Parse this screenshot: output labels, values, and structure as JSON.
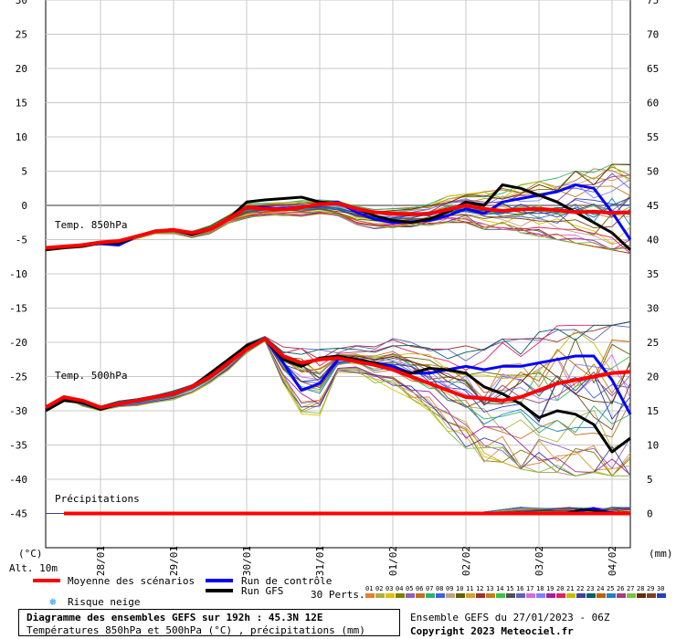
{
  "chart_data": {
    "type": "line",
    "left_axis": {
      "unit": "(°C)",
      "ticks": [
        30,
        25,
        20,
        15,
        10,
        5,
        0,
        -5,
        -10,
        -15,
        -20,
        -25,
        -30,
        -35,
        -40,
        -45
      ],
      "range": [
        -50,
        30
      ]
    },
    "right_axis": {
      "unit": "(mm)",
      "ticks": [
        75,
        70,
        65,
        60,
        55,
        50,
        45,
        40,
        35,
        30,
        25,
        20,
        15,
        10,
        5,
        0
      ]
    },
    "bottom_left_label": "Alt. 10m",
    "x_ticks": [
      "28/01",
      "29/01",
      "30/01",
      "31/01",
      "01/02",
      "02/02",
      "03/02",
      "04/02"
    ],
    "x_range_hours": [
      0,
      192
    ],
    "panel_labels": [
      "Temp. 850hPa",
      "Temp. 500hPa",
      "Précipitations"
    ],
    "grid": true,
    "t850": {
      "x": [
        0,
        6,
        12,
        18,
        24,
        30,
        36,
        42,
        48,
        54,
        60,
        66,
        72,
        78,
        84,
        90,
        96,
        102,
        108,
        114,
        120,
        126,
        132,
        138,
        144,
        150,
        156,
        162,
        168,
        174,
        180,
        186,
        192
      ],
      "mean": [
        -6.2,
        -6,
        -5.8,
        -5.4,
        -5.2,
        -4.5,
        -3.8,
        -3.6,
        -4,
        -3.5,
        -2,
        -0.3,
        -0.5,
        -0.6,
        -0.3,
        0.2,
        0.3,
        -0.5,
        -1,
        -1.2,
        -1.3,
        -1.2,
        -0.6,
        0,
        -0.5,
        -0.8,
        -0.6,
        -0.5,
        -0.7,
        -1,
        -0.9,
        -1.1,
        -1
      ],
      "control": [
        -6.3,
        -6,
        -5.8,
        -5.6,
        -5.8,
        -4.5,
        -3.8,
        -3.6,
        -4.2,
        -3.5,
        -2,
        -0.2,
        -0.3,
        -0.5,
        -0.2,
        0.2,
        0.5,
        -1,
        -2,
        -2.5,
        -2.4,
        -2.2,
        -1.5,
        -0.5,
        -1.2,
        0.5,
        1,
        1.5,
        2,
        3,
        2.5,
        -1,
        -5
      ],
      "gfs": [
        -6.5,
        -6.2,
        -6,
        -5.5,
        -5.5,
        -4.5,
        -3.8,
        -3.5,
        -4.2,
        -3.5,
        -2,
        0.5,
        0.8,
        1,
        1.2,
        0.5,
        0.3,
        -0.5,
        -1.5,
        -2.2,
        -2.5,
        -2,
        -1,
        0.5,
        0,
        3,
        2.5,
        1.5,
        0.5,
        -1,
        -2.5,
        -4,
        -6.5
      ],
      "spread_min": [
        -6.8,
        -6.5,
        -6.2,
        -6,
        -6.2,
        -5.2,
        -4.5,
        -4.5,
        -5,
        -4.5,
        -3,
        -2.5,
        -2,
        -2,
        -2,
        -1.5,
        -2,
        -3,
        -3.5,
        -3.5,
        -3.2,
        -3,
        -2.5,
        -2.5,
        -3.5,
        -3.5,
        -4,
        -4.5,
        -5,
        -5.5,
        -6,
        -6.5,
        -7
      ],
      "spread_max": [
        -5.8,
        -5.5,
        -5.3,
        -5,
        -4.8,
        -4,
        -3.2,
        -3,
        -3.5,
        -2.5,
        -1,
        0.8,
        1,
        1,
        1.2,
        1,
        1,
        0.5,
        0,
        -0.2,
        0,
        0.5,
        1.5,
        2,
        2,
        2.5,
        3,
        3.5,
        4,
        5,
        5.5,
        6,
        6
      ]
    },
    "t500": {
      "x": [
        0,
        6,
        12,
        18,
        24,
        30,
        36,
        42,
        48,
        54,
        60,
        66,
        72,
        78,
        84,
        90,
        96,
        102,
        108,
        114,
        120,
        126,
        132,
        138,
        144,
        150,
        156,
        162,
        168,
        174,
        180,
        186,
        192
      ],
      "mean": [
        -29.5,
        -28,
        -28.5,
        -29.5,
        -29,
        -28.5,
        -28,
        -27.5,
        -26.5,
        -25,
        -23,
        -21,
        -19.5,
        -22,
        -23,
        -22.5,
        -22.3,
        -22.8,
        -23.3,
        -24,
        -25,
        -26,
        -27,
        -28,
        -28.2,
        -28.5,
        -28,
        -27,
        -26,
        -25.5,
        -25,
        -24.5,
        -24.3
      ],
      "control": [
        -29.8,
        -28.3,
        -28.6,
        -29.6,
        -29,
        -28.5,
        -28,
        -27.5,
        -26.5,
        -25,
        -23,
        -21,
        -19.5,
        -23,
        -27,
        -26,
        -22.5,
        -22.5,
        -23,
        -23.5,
        -24.5,
        -24.5,
        -24,
        -23.5,
        -24,
        -23.5,
        -23.5,
        -23,
        -22.5,
        -22,
        -22,
        -25.5,
        -30.5
      ],
      "gfs": [
        -30,
        -28.5,
        -28.8,
        -29.8,
        -29,
        -28.5,
        -28,
        -27.5,
        -26.5,
        -24.5,
        -22.5,
        -20.5,
        -19.5,
        -22.5,
        -23.5,
        -22.3,
        -22,
        -22.5,
        -23,
        -24,
        -24.5,
        -23.8,
        -24,
        -24.5,
        -26.5,
        -27.5,
        -29,
        -31,
        -30,
        -30.5,
        -32,
        -36,
        -34
      ],
      "spread_min": [
        -31,
        -30,
        -30,
        -30.5,
        -30,
        -30,
        -29.5,
        -29,
        -28,
        -26.5,
        -24.5,
        -22,
        -20,
        -27,
        -32.5,
        -32,
        -25,
        -25,
        -26,
        -27,
        -28.5,
        -30,
        -33,
        -35.5,
        -37.5,
        -37.5,
        -38.5,
        -39,
        -39,
        -39.5,
        -39,
        -39.5,
        -39.5
      ],
      "spread_max": [
        -29,
        -27.5,
        -28,
        -28.8,
        -28,
        -27.5,
        -27,
        -26.5,
        -25.5,
        -24,
        -22,
        -19.8,
        -19,
        -19.8,
        -18.5,
        -20,
        -20.5,
        -20.3,
        -20.5,
        -19,
        -20,
        -20.5,
        -21,
        -20.5,
        -21,
        -19.5,
        -19.5,
        -18.5,
        -17.5,
        -17.5,
        -17.5,
        -17.5,
        -17
      ]
    },
    "precip": {
      "x": [
        0,
        144,
        192
      ],
      "mean_mm": [
        0,
        0.2,
        0
      ],
      "note_max_mm": 1
    }
  },
  "legend": {
    "mean": "Moyenne des scénarios",
    "control": "Run de contrôle",
    "gfs": "Run GFS",
    "snow": "Risque neige",
    "perts": "30 Perts.",
    "pert_labels": [
      "01",
      "02",
      "03",
      "04",
      "05",
      "06",
      "07",
      "08",
      "09",
      "10",
      "11",
      "12",
      "13",
      "14",
      "15",
      "16",
      "17",
      "18",
      "19",
      "20",
      "21",
      "22",
      "23",
      "24",
      "25",
      "26",
      "27",
      "28",
      "29",
      "30"
    ],
    "pert_colors": [
      "#e08030",
      "#b0b040",
      "#e0c000",
      "#808000",
      "#9060b0",
      "#c07020",
      "#30b070",
      "#4060e0",
      "#c0a080",
      "#606000",
      "#d0a030",
      "#a03030",
      "#c08020",
      "#40c040",
      "#505050",
      "#6060c0",
      "#d070d0",
      "#8080ff",
      "#a020a0",
      "#e02060",
      "#c0c000",
      "#4040a0",
      "#006060",
      "#c06000",
      "#2080c0",
      "#a04080",
      "#80c040",
      "#603000",
      "#804020",
      "#2040c0"
    ],
    "colors": {
      "mean": "#ff0000",
      "control": "#0000ff",
      "gfs": "#000000",
      "snow": "#3399ff"
    }
  },
  "footer": {
    "title": "Diagramme des ensembles GEFS sur 192h : 45.3N 12E",
    "subtitle": "Températures 850hPa et 500hPa (°C) , précipitations (mm)",
    "ens_info": "Ensemble GEFS du 27/01/2023 - 06Z",
    "copyright": "Copyright 2023 Meteociel.fr"
  }
}
